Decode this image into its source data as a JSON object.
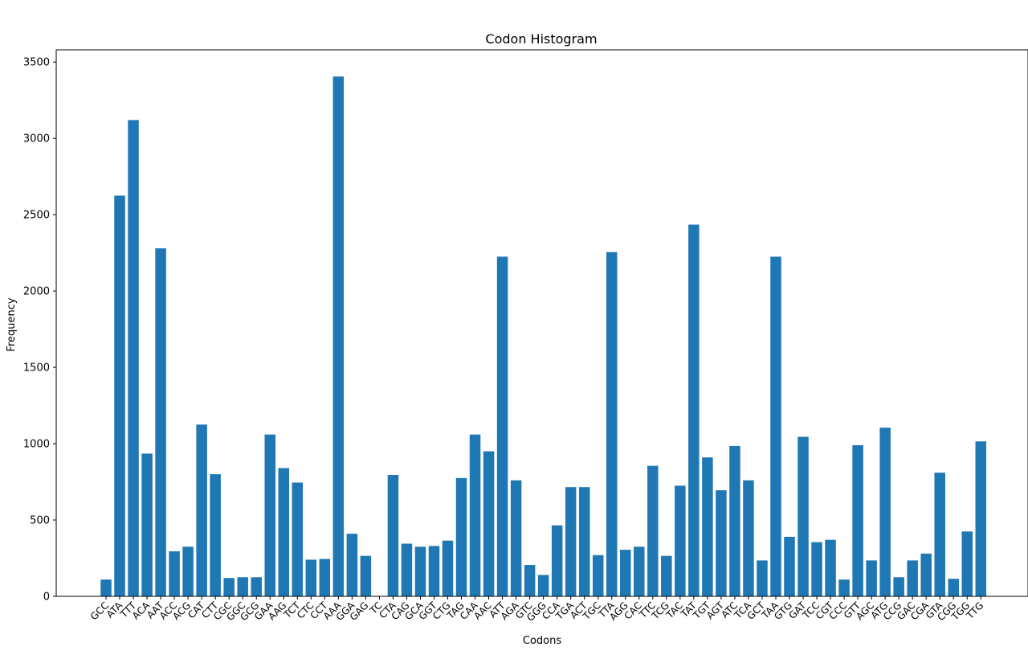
{
  "chart_data": {
    "type": "bar",
    "title": "Codon Histogram",
    "xlabel": "Codons",
    "ylabel": "Frequency",
    "ylim": [
      0,
      3580
    ],
    "yticks": [
      0,
      500,
      1000,
      1500,
      2000,
      2500,
      3000,
      3500
    ],
    "bar_color": "#1f77b4",
    "categories": [
      "GCC",
      "ATA",
      "TTT",
      "ACA",
      "AAT",
      "ACC",
      "ACG",
      "CAT",
      "CTT",
      "CGC",
      "GGC",
      "GCG",
      "GAA",
      "AAG",
      "TCT",
      "CTC",
      "CCT",
      "AAA",
      "GGA",
      "GAG",
      "TC",
      "CTA",
      "CAG",
      "GCA",
      "GGT",
      "CTG",
      "TAG",
      "CAA",
      "AAC",
      "ATT",
      "AGA",
      "GTC",
      "GGG",
      "CCA",
      "TGA",
      "ACT",
      "TGC",
      "TTA",
      "AGG",
      "CAC",
      "TTC",
      "TCG",
      "TAC",
      "TAT",
      "TGT",
      "AGT",
      "ATC",
      "TCA",
      "GCT",
      "TAA",
      "GTG",
      "GAT",
      "TCC",
      "CGT",
      "CCC",
      "GTT",
      "AGC",
      "ATG",
      "CCG",
      "GAC",
      "CGA",
      "GTA",
      "CGG",
      "TGG",
      "TTG"
    ],
    "values": [
      110,
      2625,
      3120,
      935,
      2280,
      295,
      325,
      1125,
      800,
      120,
      125,
      125,
      1060,
      840,
      745,
      240,
      245,
      3405,
      410,
      265,
      0,
      795,
      345,
      325,
      330,
      365,
      775,
      1060,
      950,
      2225,
      760,
      205,
      140,
      465,
      715,
      715,
      270,
      2255,
      305,
      325,
      855,
      265,
      725,
      2435,
      910,
      695,
      985,
      760,
      235,
      2225,
      390,
      1045,
      355,
      370,
      110,
      990,
      235,
      1105,
      125,
      235,
      280,
      810,
      115,
      425,
      1015
    ]
  }
}
